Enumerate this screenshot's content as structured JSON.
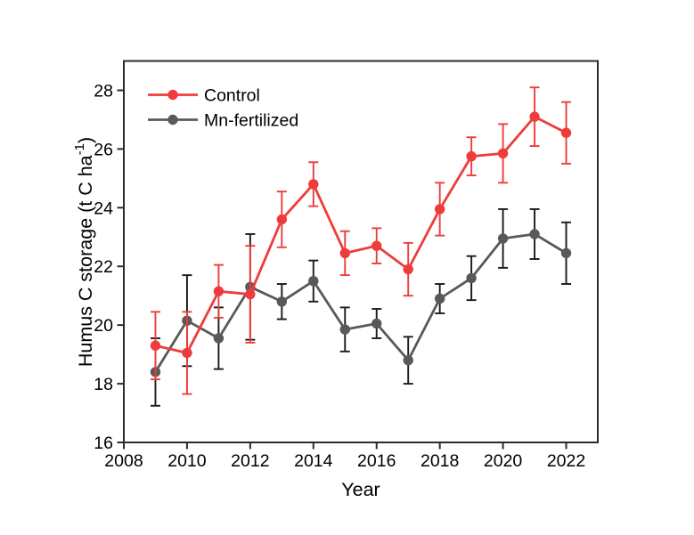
{
  "chart_data": {
    "type": "line",
    "title": "",
    "xlabel": "Year",
    "ylabel": {
      "text": "Humus C storage (t C ha⁻¹)",
      "prefix": "Humus C storage (t C ha",
      "superscript": "-1",
      "suffix": ")"
    },
    "x": [
      2009,
      2010,
      2011,
      2012,
      2013,
      2014,
      2015,
      2016,
      2017,
      2018,
      2019,
      2020,
      2021,
      2022
    ],
    "series": [
      {
        "name": "Control",
        "color": "#ee3c3c",
        "error_color": "#ee3c3c",
        "marker": "circle",
        "values": [
          19.3,
          19.05,
          21.15,
          21.05,
          23.6,
          24.8,
          22.45,
          22.7,
          21.9,
          23.95,
          25.75,
          25.85,
          27.1,
          26.55
        ],
        "errors": [
          1.15,
          1.4,
          0.9,
          1.65,
          0.95,
          0.75,
          0.75,
          0.6,
          0.9,
          0.9,
          0.65,
          1.0,
          1.0,
          1.05
        ]
      },
      {
        "name": "Mn-fertilized",
        "color": "#595959",
        "error_color": "#1a1a1a",
        "marker": "circle",
        "values": [
          18.4,
          20.15,
          19.55,
          21.3,
          20.8,
          21.5,
          19.85,
          20.05,
          18.8,
          20.9,
          21.6,
          22.95,
          23.1,
          22.45
        ],
        "errors": [
          1.15,
          1.55,
          1.05,
          1.8,
          0.6,
          0.7,
          0.75,
          0.5,
          0.8,
          0.5,
          0.75,
          1.0,
          0.85,
          1.05
        ]
      }
    ],
    "axes": {
      "x": {
        "min": 2008,
        "max": 2023,
        "ticks": [
          2008,
          2010,
          2012,
          2014,
          2016,
          2018,
          2020,
          2022
        ]
      },
      "y": {
        "min": 16,
        "max": 29,
        "ticks": [
          16,
          18,
          20,
          22,
          24,
          26,
          28
        ]
      }
    },
    "legend": {
      "position": "top-left"
    },
    "grid": false,
    "frame": true
  }
}
